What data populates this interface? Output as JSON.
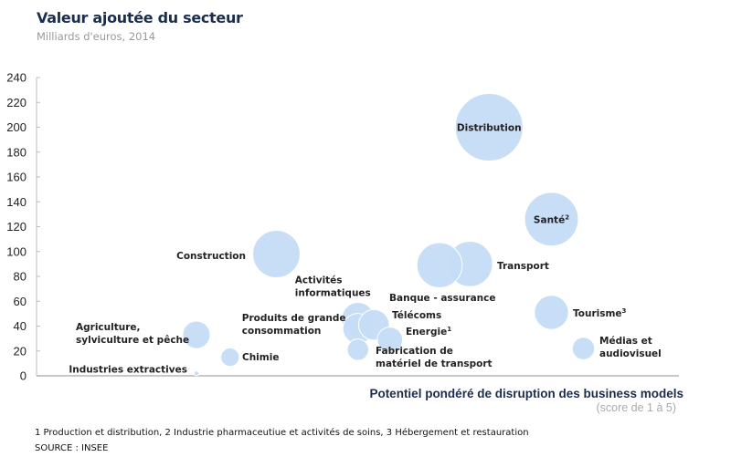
{
  "chart_data": {
    "type": "scatter",
    "subtype": "bubble",
    "title": "Valeur ajoutée du secteur",
    "subtitle": "Milliards d'euros, 2014",
    "xlabel": "Potentiel pondéré de disruption des business models",
    "xlabel_sub": "(score de 1 à 5)",
    "ylabel": "",
    "xlim": [
      1,
      5
    ],
    "ylim": [
      0,
      240
    ],
    "yticks": [
      "0",
      "20",
      "40",
      "60",
      "80",
      "100",
      "120",
      "140",
      "160",
      "180",
      "200",
      "220",
      "240"
    ],
    "grid": false,
    "bubble_color": "#c5dcf5",
    "points": [
      {
        "name": "Distribution",
        "label_lines": [
          "Distribution"
        ],
        "sup": "",
        "x": 3.83,
        "y": 200,
        "size": 200,
        "label_pos": "inside"
      },
      {
        "name": "Santé",
        "label_lines": [
          "Santé"
        ],
        "sup": "2",
        "x": 4.22,
        "y": 126,
        "size": 126,
        "label_pos": "inside"
      },
      {
        "name": "Transport",
        "label_lines": [
          "Transport"
        ],
        "sup": "",
        "x": 3.71,
        "y": 90,
        "size": 90,
        "label_pos": "right"
      },
      {
        "name": "Banque - assurance",
        "label_lines": [
          "Banque - assurance"
        ],
        "sup": "",
        "x": 3.52,
        "y": 89,
        "size": 89,
        "label_pos": "below-left"
      },
      {
        "name": "Construction",
        "label_lines": [
          "Construction"
        ],
        "sup": "",
        "x": 2.5,
        "y": 98,
        "size": 98,
        "label_pos": "left"
      },
      {
        "name": "Tourisme",
        "label_lines": [
          "Tourisme"
        ],
        "sup": "3",
        "x": 4.22,
        "y": 51,
        "size": 51,
        "label_pos": "right"
      },
      {
        "name": "Médias et audiovisuel",
        "label_lines": [
          "Médias et",
          "audiovisuel"
        ],
        "sup": "",
        "x": 4.42,
        "y": 22,
        "size": 22,
        "label_pos": "right"
      },
      {
        "name": "Activités informatiques",
        "label_lines": [
          "Activités",
          "informatiques"
        ],
        "sup": "",
        "x": 3.01,
        "y": 46,
        "size": 46,
        "label_pos": "above-left"
      },
      {
        "name": "Produits de grande consommation",
        "label_lines": [
          "Produits de grande",
          "consommation"
        ],
        "sup": "",
        "x": 3.01,
        "y": 38,
        "size": 40,
        "label_pos": "left"
      },
      {
        "name": "Télécoms",
        "label_lines": [
          "Télécoms"
        ],
        "sup": "",
        "x": 3.11,
        "y": 41,
        "size": 41,
        "label_pos": "right"
      },
      {
        "name": "Energie",
        "label_lines": [
          "Energie"
        ],
        "sup": "1",
        "x": 3.21,
        "y": 29,
        "size": 28,
        "label_pos": "right"
      },
      {
        "name": "Fabrication de matériel de transport",
        "label_lines": [
          "Fabrication de",
          "matériel de transport"
        ],
        "sup": "",
        "x": 3.01,
        "y": 21,
        "size": 20,
        "label_pos": "right"
      },
      {
        "name": "Agriculture, sylviculture et pêche",
        "label_lines": [
          "Agriculture,",
          "sylviculture et pêche"
        ],
        "sup": "",
        "x": 2.0,
        "y": 33,
        "size": 33,
        "label_pos": "left"
      },
      {
        "name": "Chimie",
        "label_lines": [
          "Chimie"
        ],
        "sup": "",
        "x": 2.21,
        "y": 15,
        "size": 15,
        "label_pos": "right"
      },
      {
        "name": "Industries extractives",
        "label_lines": [
          "Industries extractives"
        ],
        "sup": "",
        "x": 2.0,
        "y": 2,
        "size": 1,
        "label_pos": "left"
      }
    ]
  },
  "footnotes": {
    "notes": "1 Production et distribution, 2 Industrie pharmaceutiue et activités de soins, 3 Hébergement et restauration",
    "source": "SOURCE : INSEE"
  }
}
